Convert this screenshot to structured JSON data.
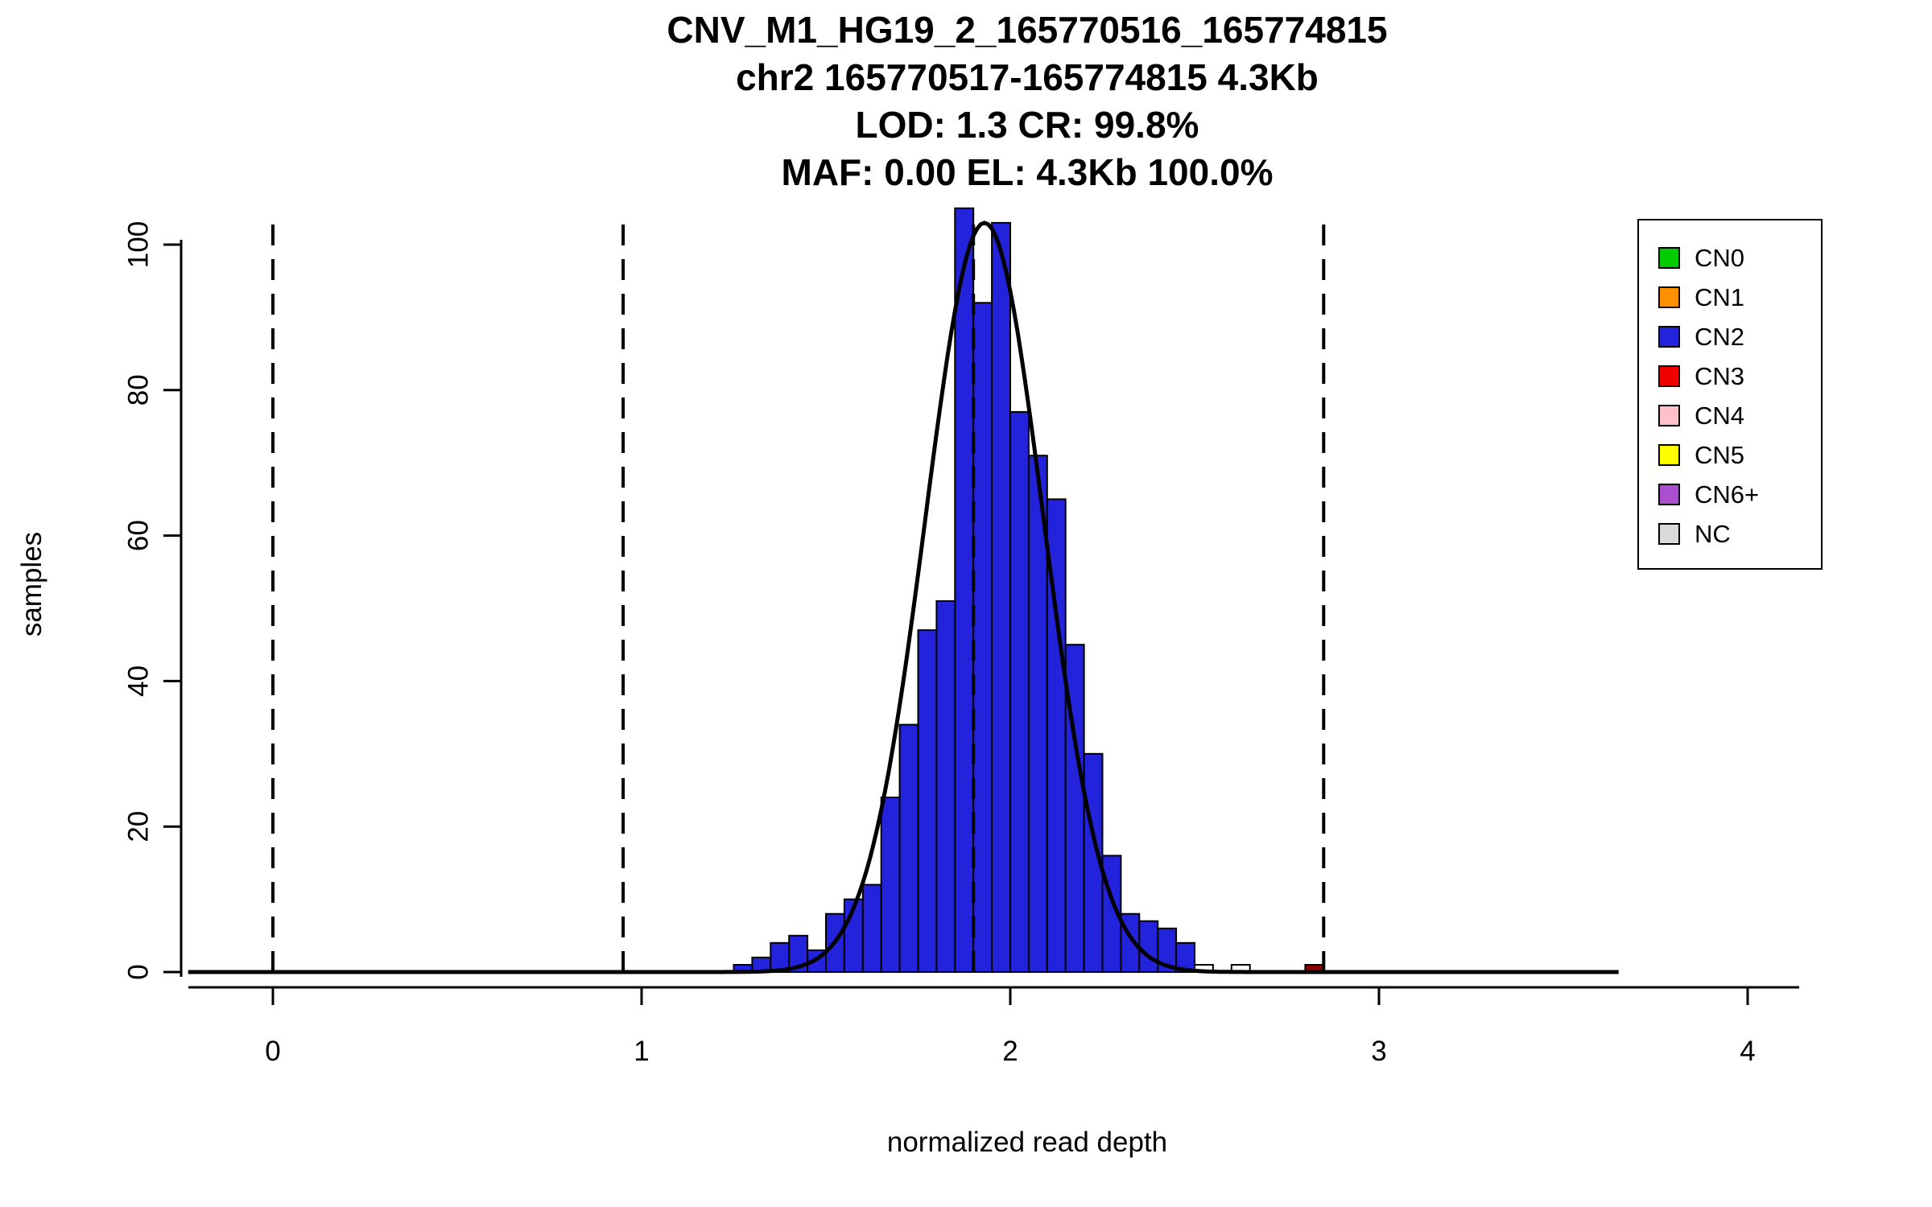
{
  "title_lines": [
    "CNV_M1_HG19_2_165770516_165774815",
    "chr2 165770517-165774815 4.3Kb",
    "LOD: 1.3 CR: 99.8%",
    "MAF: 0.00 EL: 4.3Kb 100.0%"
  ],
  "chart_data": {
    "type": "bar",
    "title": "CNV_M1_HG19_2_165770516_165774815 / chr2 165770517-165774815 4.3Kb / LOD: 1.3 CR: 99.8% / MAF: 0.00 EL: 4.3Kb 100.0%",
    "xlabel": "normalized read depth",
    "ylabel": "samples",
    "xlim": [
      -0.25,
      4.15
    ],
    "ylim": [
      0,
      106
    ],
    "x_ticks": [
      0,
      1,
      2,
      3,
      4
    ],
    "y_ticks": [
      0,
      20,
      40,
      60,
      80,
      100
    ],
    "grid": false,
    "legend_position": "top-right",
    "bin_width": 0.05,
    "default_bar_color": "#2323DB",
    "bars": [
      {
        "x": 1.25,
        "h": 1
      },
      {
        "x": 1.3,
        "h": 2
      },
      {
        "x": 1.35,
        "h": 4
      },
      {
        "x": 1.4,
        "h": 5
      },
      {
        "x": 1.45,
        "h": 3
      },
      {
        "x": 1.5,
        "h": 8
      },
      {
        "x": 1.55,
        "h": 10
      },
      {
        "x": 1.6,
        "h": 12
      },
      {
        "x": 1.65,
        "h": 24
      },
      {
        "x": 1.7,
        "h": 34
      },
      {
        "x": 1.75,
        "h": 47
      },
      {
        "x": 1.8,
        "h": 51
      },
      {
        "x": 1.85,
        "h": 105
      },
      {
        "x": 1.9,
        "h": 92
      },
      {
        "x": 1.95,
        "h": 103
      },
      {
        "x": 2.0,
        "h": 77
      },
      {
        "x": 2.05,
        "h": 71
      },
      {
        "x": 2.1,
        "h": 65
      },
      {
        "x": 2.15,
        "h": 45
      },
      {
        "x": 2.2,
        "h": 30
      },
      {
        "x": 2.25,
        "h": 16
      },
      {
        "x": 2.3,
        "h": 8
      },
      {
        "x": 2.35,
        "h": 7
      },
      {
        "x": 2.4,
        "h": 6
      },
      {
        "x": 2.45,
        "h": 4
      },
      {
        "x": 2.5,
        "h": 1,
        "color": "#FFFFFF"
      },
      {
        "x": 2.6,
        "h": 1,
        "color": "#FFFFFF"
      },
      {
        "x": 2.8,
        "h": 1,
        "color": "#8B0000"
      }
    ],
    "dashed_lines_x": [
      0,
      0.95,
      1.9,
      2.85
    ],
    "dash_top": 104,
    "curve": {
      "mean": 1.93,
      "sd": 0.16,
      "peak": 103,
      "x_start": -0.23,
      "x_end": 3.65
    },
    "legend": {
      "items": [
        {
          "label": "CN0",
          "color": "#00CC00"
        },
        {
          "label": "CN1",
          "color": "#FF9100"
        },
        {
          "label": "CN2",
          "color": "#2323DB"
        },
        {
          "label": "CN3",
          "color": "#EE0000"
        },
        {
          "label": "CN4",
          "color": "#FFC0CB"
        },
        {
          "label": "CN5",
          "color": "#FFFF00"
        },
        {
          "label": "CN6+",
          "color": "#AB4FD0"
        },
        {
          "label": "NC",
          "color": "#D9D9D9"
        }
      ]
    }
  }
}
